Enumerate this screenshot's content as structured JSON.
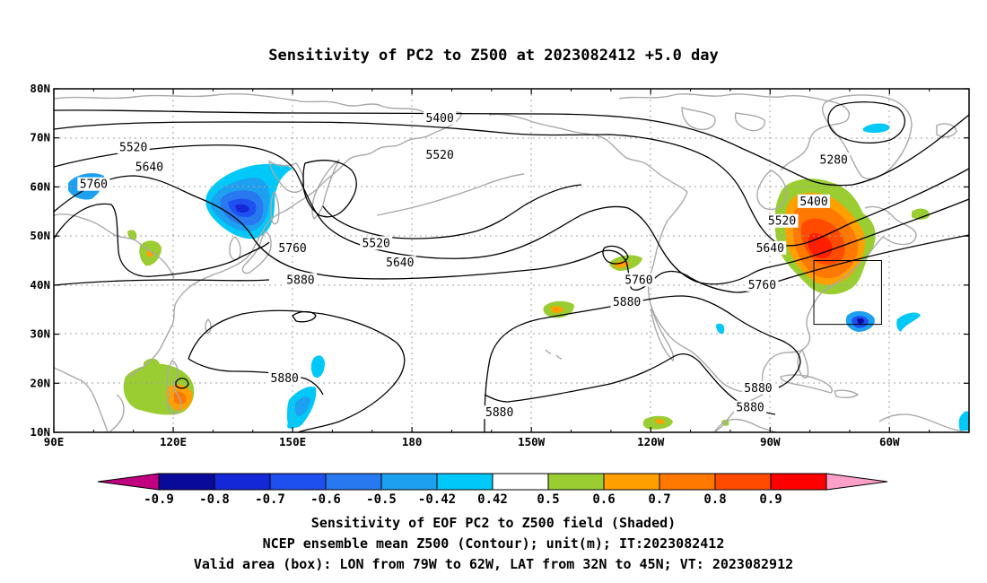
{
  "title": "Sensitivity of PC2 to Z500 at 2023082412 +5.0 day",
  "map": {
    "lon_labels": [
      "90E",
      "120E",
      "150E",
      "180",
      "150W",
      "120W",
      "90W",
      "60W"
    ],
    "lat_labels": [
      "80N",
      "70N",
      "60N",
      "50N",
      "40N",
      "30N",
      "20N",
      "10N"
    ],
    "contour_labels": [
      {
        "text": "5400",
        "lon": 187,
        "lat": 74.0
      },
      {
        "text": "5520",
        "lon": 110,
        "lat": 68.0
      },
      {
        "text": "5520",
        "lon": 187,
        "lat": 66.5
      },
      {
        "text": "5640",
        "lon": 114,
        "lat": 64.0
      },
      {
        "text": "5760",
        "lon": 100,
        "lat": 60.5
      },
      {
        "text": "5280",
        "lon": 286,
        "lat": 65.5
      },
      {
        "text": "5400",
        "lon": 281,
        "lat": 57.0
      },
      {
        "text": "5520",
        "lon": 273,
        "lat": 53.0
      },
      {
        "text": "5520",
        "lon": 171,
        "lat": 48.5
      },
      {
        "text": "5640",
        "lon": 177,
        "lat": 44.5
      },
      {
        "text": "5640",
        "lon": 270,
        "lat": 47.5
      },
      {
        "text": "5760",
        "lon": 150,
        "lat": 47.5
      },
      {
        "text": "5760",
        "lon": 237,
        "lat": 41.0
      },
      {
        "text": "5760",
        "lon": 268,
        "lat": 40.0
      },
      {
        "text": "5880",
        "lon": 152,
        "lat": 41.0
      },
      {
        "text": "5880",
        "lon": 234,
        "lat": 36.5
      },
      {
        "text": "5880",
        "lon": 148,
        "lat": 21.0
      },
      {
        "text": "5880",
        "lon": 202,
        "lat": 14.0
      },
      {
        "text": "5880",
        "lon": 267,
        "lat": 19.0
      },
      {
        "text": "5880",
        "lon": 265,
        "lat": 15.0
      }
    ],
    "valid_box": {
      "lon_west": -79,
      "lon_east": -62,
      "lat_south": 32,
      "lat_north": 45
    }
  },
  "colorbar": {
    "labels": [
      "-0.9",
      "-0.8",
      "-0.7",
      "-0.6",
      "-0.5",
      "-0.42",
      "0.42",
      "0.5",
      "0.6",
      "0.7",
      "0.8",
      "0.9"
    ],
    "low_tip_color": "#c0007f",
    "high_tip_color": "#ffa0c8",
    "colors": [
      "#0a0a9a",
      "#1428d8",
      "#1e50f0",
      "#2878f0",
      "#1ea0f0",
      "#00c8f8",
      "#ffffff",
      "#9acd32",
      "#ffa000",
      "#ff7800",
      "#ff4b00",
      "#ff0000"
    ]
  },
  "caption": {
    "line1": "Sensitivity of EOF PC2 to Z500 field (Shaded)",
    "line2": "NCEP ensemble mean Z500 (Contour); unit(m); IT:2023082412",
    "line3": "Valid area (box): LON from 79W to 62W, LAT from 32N to 45N; VT: 2023082912"
  }
}
